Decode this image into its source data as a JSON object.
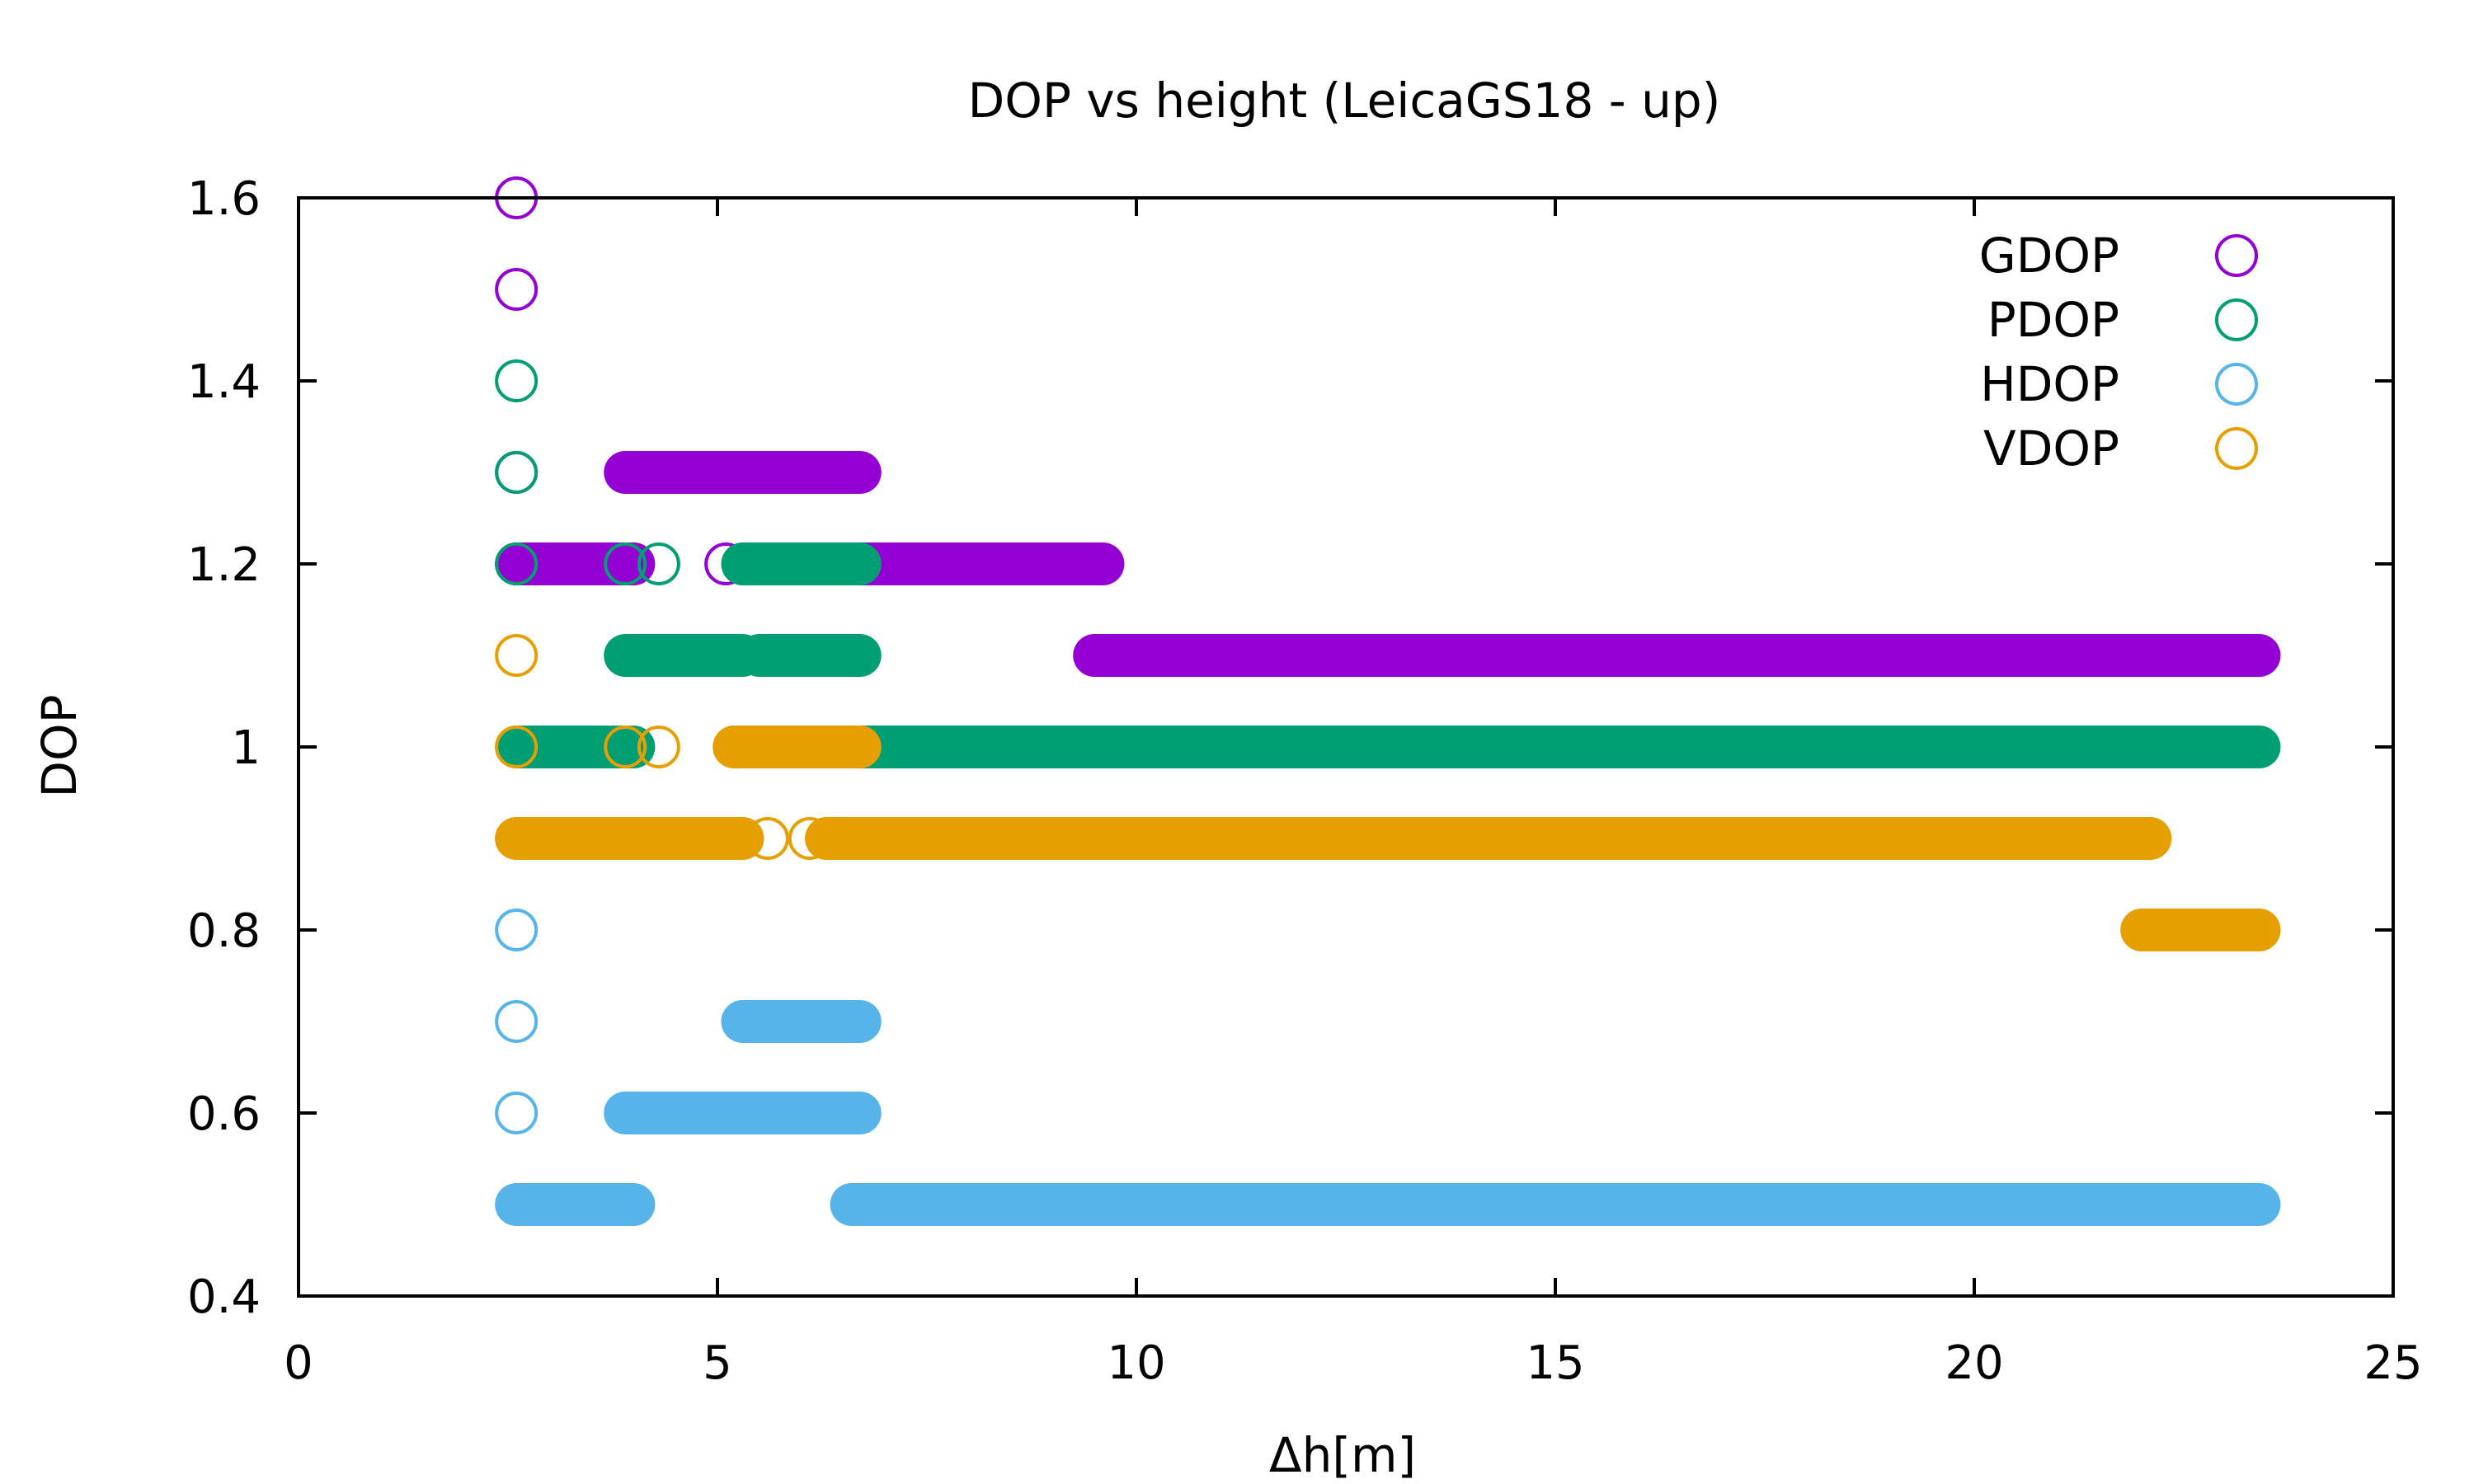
{
  "chart_data": {
    "type": "scatter",
    "title": "DOP vs height (LeicaGS18 - up)",
    "xlabel": "Δh[m]",
    "ylabel": "DOP",
    "xlim": [
      0,
      25
    ],
    "ylim": [
      0.4,
      1.6
    ],
    "x_ticks": [
      0,
      5,
      10,
      15,
      20,
      25
    ],
    "x_tick_labels": [
      "0",
      "5",
      "10",
      "15",
      "20",
      "25"
    ],
    "y_ticks": [
      0.4,
      0.6,
      0.8,
      1.0,
      1.2,
      1.4,
      1.6
    ],
    "y_tick_labels": [
      "0.4",
      "0.6",
      "0.8",
      "1",
      "1.2",
      "1.4",
      "1.6"
    ],
    "legend_position": "top-right",
    "marker": "open-circle",
    "series": [
      {
        "name": "GDOP",
        "color": "#9400d3",
        "points": [
          [
            2.6,
            1.6
          ],
          [
            2.6,
            1.5
          ],
          [
            2.6,
            1.3
          ],
          [
            2.6,
            1.2
          ],
          [
            5.1,
            1.2
          ]
        ],
        "runs": [
          [
            3.9,
            6.7,
            1.3
          ],
          [
            2.6,
            4.0,
            1.2
          ],
          [
            6.6,
            9.6,
            1.2
          ],
          [
            9.5,
            23.4,
            1.1
          ]
        ]
      },
      {
        "name": "PDOP",
        "color": "#009e73",
        "points": [
          [
            2.6,
            1.4
          ],
          [
            2.6,
            1.3
          ],
          [
            2.6,
            1.2
          ],
          [
            3.9,
            1.2
          ],
          [
            4.3,
            1.2
          ],
          [
            5.6,
            1.2
          ],
          [
            5.9,
            1.2
          ],
          [
            6.2,
            1.2
          ],
          [
            6.6,
            1.2
          ],
          [
            4.1,
            1.1
          ],
          [
            5.6,
            1.1
          ],
          [
            6.0,
            1.1
          ],
          [
            6.3,
            1.1
          ],
          [
            6.6,
            1.1
          ]
        ],
        "runs": [
          [
            5.3,
            6.7,
            1.2
          ],
          [
            3.9,
            5.3,
            1.1
          ],
          [
            5.5,
            6.7,
            1.1
          ],
          [
            2.6,
            4.0,
            1.0
          ],
          [
            6.6,
            23.4,
            1.0
          ]
        ]
      },
      {
        "name": "HDOP",
        "color": "#56b4e9",
        "points": [
          [
            2.6,
            0.8
          ],
          [
            2.6,
            0.7
          ],
          [
            2.6,
            0.6
          ],
          [
            5.4,
            0.7
          ],
          [
            5.7,
            0.7
          ],
          [
            6.0,
            0.7
          ],
          [
            6.3,
            0.7
          ],
          [
            6.6,
            0.7
          ],
          [
            5.7,
            0.6
          ],
          [
            6.0,
            0.6
          ],
          [
            6.3,
            0.6
          ],
          [
            6.6,
            0.6
          ]
        ],
        "runs": [
          [
            5.3,
            6.7,
            0.7
          ],
          [
            3.9,
            5.6,
            0.6
          ],
          [
            5.6,
            6.7,
            0.6
          ],
          [
            2.6,
            4.0,
            0.5
          ],
          [
            6.6,
            23.4,
            0.5
          ]
        ]
      },
      {
        "name": "VDOP",
        "color": "#e69f00",
        "points": [
          [
            2.6,
            1.1
          ],
          [
            2.6,
            1.0
          ],
          [
            3.9,
            1.0
          ],
          [
            4.3,
            1.0
          ],
          [
            5.2,
            1.0
          ],
          [
            5.6,
            1.0
          ],
          [
            6.0,
            1.0
          ],
          [
            6.3,
            1.0
          ],
          [
            6.6,
            1.0
          ],
          [
            5.6,
            0.9
          ],
          [
            6.1,
            0.9
          ],
          [
            6.4,
            0.9
          ]
        ],
        "runs": [
          [
            5.2,
            6.7,
            1.0
          ],
          [
            2.6,
            5.3,
            0.9
          ],
          [
            6.3,
            22.1,
            0.9
          ],
          [
            22.0,
            23.4,
            0.8
          ]
        ]
      }
    ]
  }
}
